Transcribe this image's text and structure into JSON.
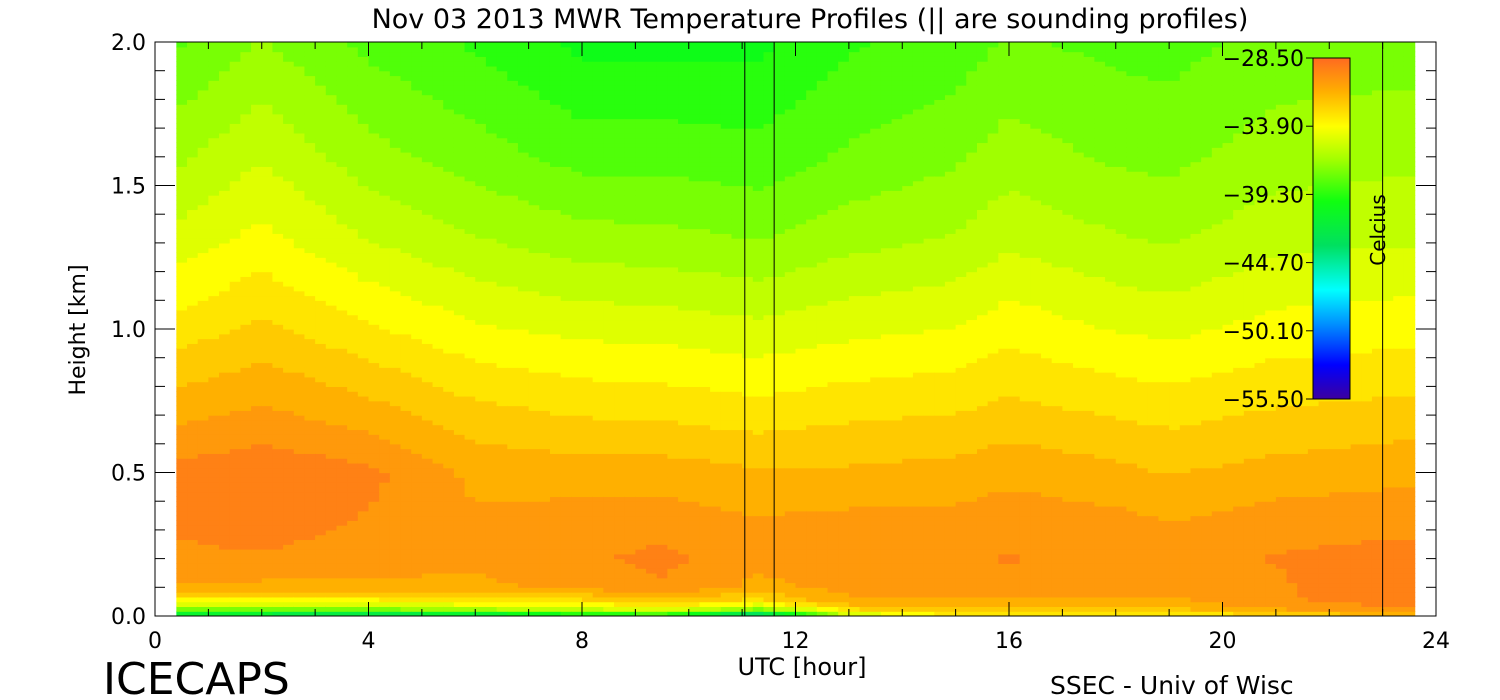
{
  "chart_data": {
    "type": "heatmap",
    "title": "Nov 03 2013 MWR Temperature Profiles (|| are sounding profiles)",
    "xlabel": "UTC [hour]",
    "ylabel": "Height [km]",
    "xlim": [
      0,
      24
    ],
    "ylim": [
      0,
      2.0
    ],
    "x_ticks": [
      "0",
      "4",
      "8",
      "12",
      "16",
      "20",
      "24"
    ],
    "y_ticks": [
      "0.0",
      "0.5",
      "1.0",
      "1.5",
      "2.0"
    ],
    "data_x_range": [
      0.4,
      23.6
    ],
    "sounding_profiles_utc": [
      11.05,
      11.6,
      23.0
    ],
    "colorbar": {
      "label": "Celcius",
      "ticks": [
        "-28.50",
        "-33.90",
        "-39.30",
        "-44.70",
        "-50.10",
        "-55.50"
      ],
      "range": [
        -55.5,
        -28.5
      ]
    },
    "temperature_grid": {
      "heights_km": [
        0.0,
        0.02,
        0.05,
        0.1,
        0.2,
        0.3,
        0.5,
        0.7,
        1.0,
        1.3,
        1.6,
        2.0
      ],
      "hours_utc": [
        0.5,
        2,
        4,
        6,
        8,
        9.5,
        11.3,
        13,
        15,
        16,
        18,
        19,
        21,
        23.3
      ],
      "values_c": [
        [
          -44,
          -44,
          -45,
          -44,
          -42,
          -41,
          -47,
          -36,
          -34,
          -34,
          -34,
          -34,
          -33,
          -32
        ],
        [
          -38,
          -38,
          -38,
          -37,
          -36,
          -35,
          -38,
          -33,
          -32,
          -32,
          -32,
          -32,
          -31,
          -30
        ],
        [
          -34,
          -34,
          -34,
          -33,
          -33,
          -32,
          -33,
          -31,
          -31,
          -31,
          -31,
          -31,
          -30,
          -29.5
        ],
        [
          -31,
          -31,
          -31,
          -31,
          -30.5,
          -30,
          -31,
          -30.5,
          -30.3,
          -30.2,
          -30.5,
          -30.5,
          -30,
          -29
        ],
        [
          -30,
          -30,
          -30.3,
          -30.5,
          -30,
          -29.6,
          -30.5,
          -30,
          -29.9,
          -29.8,
          -30,
          -30.2,
          -29.8,
          -29.5
        ],
        [
          -29.8,
          -29.5,
          -30,
          -30.5,
          -30.2,
          -30.1,
          -30.5,
          -30.3,
          -30.3,
          -30.1,
          -30.3,
          -30.6,
          -30.1,
          -30.0
        ],
        [
          -29.5,
          -29.2,
          -29.6,
          -31.0,
          -31.2,
          -31.2,
          -31.5,
          -31.5,
          -31.3,
          -31.0,
          -31.4,
          -31.7,
          -31.3,
          -31.0
        ],
        [
          -31.0,
          -30.5,
          -31.2,
          -32.2,
          -32.6,
          -32.7,
          -33.0,
          -32.7,
          -32.5,
          -32.2,
          -32.6,
          -32.8,
          -32.4,
          -32.2
        ],
        [
          -33.0,
          -32.3,
          -33.3,
          -34.2,
          -34.6,
          -34.7,
          -35.0,
          -34.6,
          -34.3,
          -33.8,
          -34.4,
          -34.6,
          -34.0,
          -33.8
        ],
        [
          -34.8,
          -34.0,
          -35.2,
          -36.0,
          -36.6,
          -36.7,
          -37.0,
          -36.4,
          -36.0,
          -35.4,
          -36.0,
          -36.2,
          -35.5,
          -35.3
        ],
        [
          -36.3,
          -35.3,
          -36.7,
          -37.5,
          -38.3,
          -38.3,
          -38.5,
          -37.8,
          -37.2,
          -36.6,
          -37.2,
          -37.3,
          -36.6,
          -36.4
        ],
        [
          -38.0,
          -37.0,
          -38.2,
          -39.0,
          -40.0,
          -40.0,
          -40.0,
          -39.0,
          -38.5,
          -37.8,
          -38.2,
          -38.3,
          -37.6,
          -37.5
        ]
      ]
    }
  },
  "footer": {
    "left": "ICECAPS",
    "right": "SSEC - Univ of Wisc"
  }
}
